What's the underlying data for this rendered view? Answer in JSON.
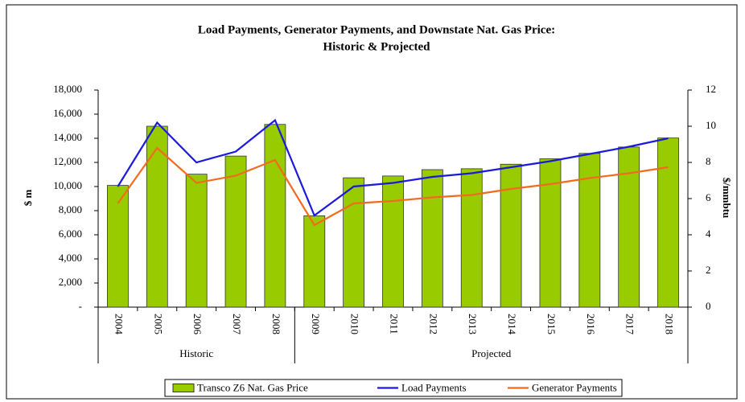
{
  "chart_data": {
    "type": "bar-line",
    "title": "Load Payments, Generator Payments, and Downstate Nat. Gas Price:",
    "subtitle": "Historic & Projected",
    "y_label": "$ m",
    "y2_label": "$/mmbtu",
    "groups": [
      {
        "label": "Historic",
        "categories": [
          "2004",
          "2005",
          "2006",
          "2007",
          "2008"
        ]
      },
      {
        "label": "Projected",
        "categories": [
          "2009",
          "2010",
          "2011",
          "2012",
          "2013",
          "2014",
          "2015",
          "2016",
          "2017",
          "2018"
        ]
      }
    ],
    "series": [
      {
        "name": "Transco Z6 Nat. Gas Price",
        "type": "bar",
        "axis": "y2",
        "color": "#99cc00",
        "values": [
          6.73,
          10.0,
          7.35,
          8.35,
          10.1,
          5.05,
          7.15,
          7.25,
          7.6,
          7.65,
          7.9,
          8.2,
          8.5,
          8.85,
          9.35
        ]
      },
      {
        "name": "Load Payments",
        "type": "line",
        "color": "#1a1adb",
        "values": [
          10000,
          15300,
          12000,
          12900,
          15500,
          7600,
          10000,
          10300,
          10800,
          11100,
          11600,
          12100,
          12700,
          13300,
          14000
        ]
      },
      {
        "name": "Generator Payments",
        "type": "line",
        "color": "#f26b1d",
        "values": [
          8600,
          13200,
          10300,
          10900,
          12200,
          6800,
          8600,
          8800,
          9100,
          9300,
          9800,
          10200,
          10700,
          11100,
          11600
        ]
      }
    ],
    "ylim": [
      0,
      18000
    ],
    "yticks": [
      {
        "value": 0,
        "label": "-"
      },
      {
        "value": 2000,
        "label": "2,000"
      },
      {
        "value": 4000,
        "label": "4,000"
      },
      {
        "value": 6000,
        "label": "6,000"
      },
      {
        "value": 8000,
        "label": "8,000"
      },
      {
        "value": 10000,
        "label": "10,000"
      },
      {
        "value": 12000,
        "label": "12,000"
      },
      {
        "value": 14000,
        "label": "14,000"
      },
      {
        "value": 16000,
        "label": "16,000"
      },
      {
        "value": 18000,
        "label": "18,000"
      }
    ],
    "y2lim": [
      0,
      12
    ],
    "y2ticks": [
      0,
      2,
      4,
      6,
      8,
      10,
      12
    ],
    "legend": "bottom"
  }
}
